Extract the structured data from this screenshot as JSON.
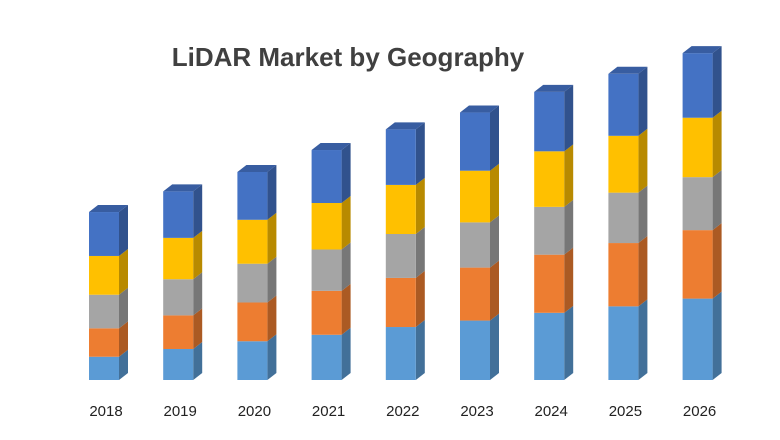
{
  "chart_data": {
    "type": "bar",
    "stacked": true,
    "style": "3d-column",
    "title": "LiDAR Market by Geography",
    "xlabel": "",
    "ylabel": "",
    "categories": [
      "2018",
      "2019",
      "2020",
      "2021",
      "2022",
      "2023",
      "2024",
      "2025",
      "2026"
    ],
    "ylim": [
      0,
      250
    ],
    "grid": false,
    "legend": "none",
    "series": [
      {
        "values": [
          18,
          24,
          30,
          35,
          41,
          46,
          52,
          57,
          63
        ],
        "color": "#5B9BD5"
      },
      {
        "values": [
          22,
          26,
          30,
          34,
          38,
          41,
          45,
          49,
          53
        ],
        "color": "#ED7D31"
      },
      {
        "values": [
          26,
          28,
          30,
          32,
          34,
          35,
          37,
          39,
          41
        ],
        "color": "#A5A5A5"
      },
      {
        "values": [
          30,
          32,
          34,
          36,
          38,
          40,
          43,
          44,
          46
        ],
        "color": "#FFC000"
      },
      {
        "values": [
          34,
          36,
          37,
          41,
          43,
          45,
          46,
          48,
          50
        ],
        "color": "#4472C4"
      }
    ]
  }
}
